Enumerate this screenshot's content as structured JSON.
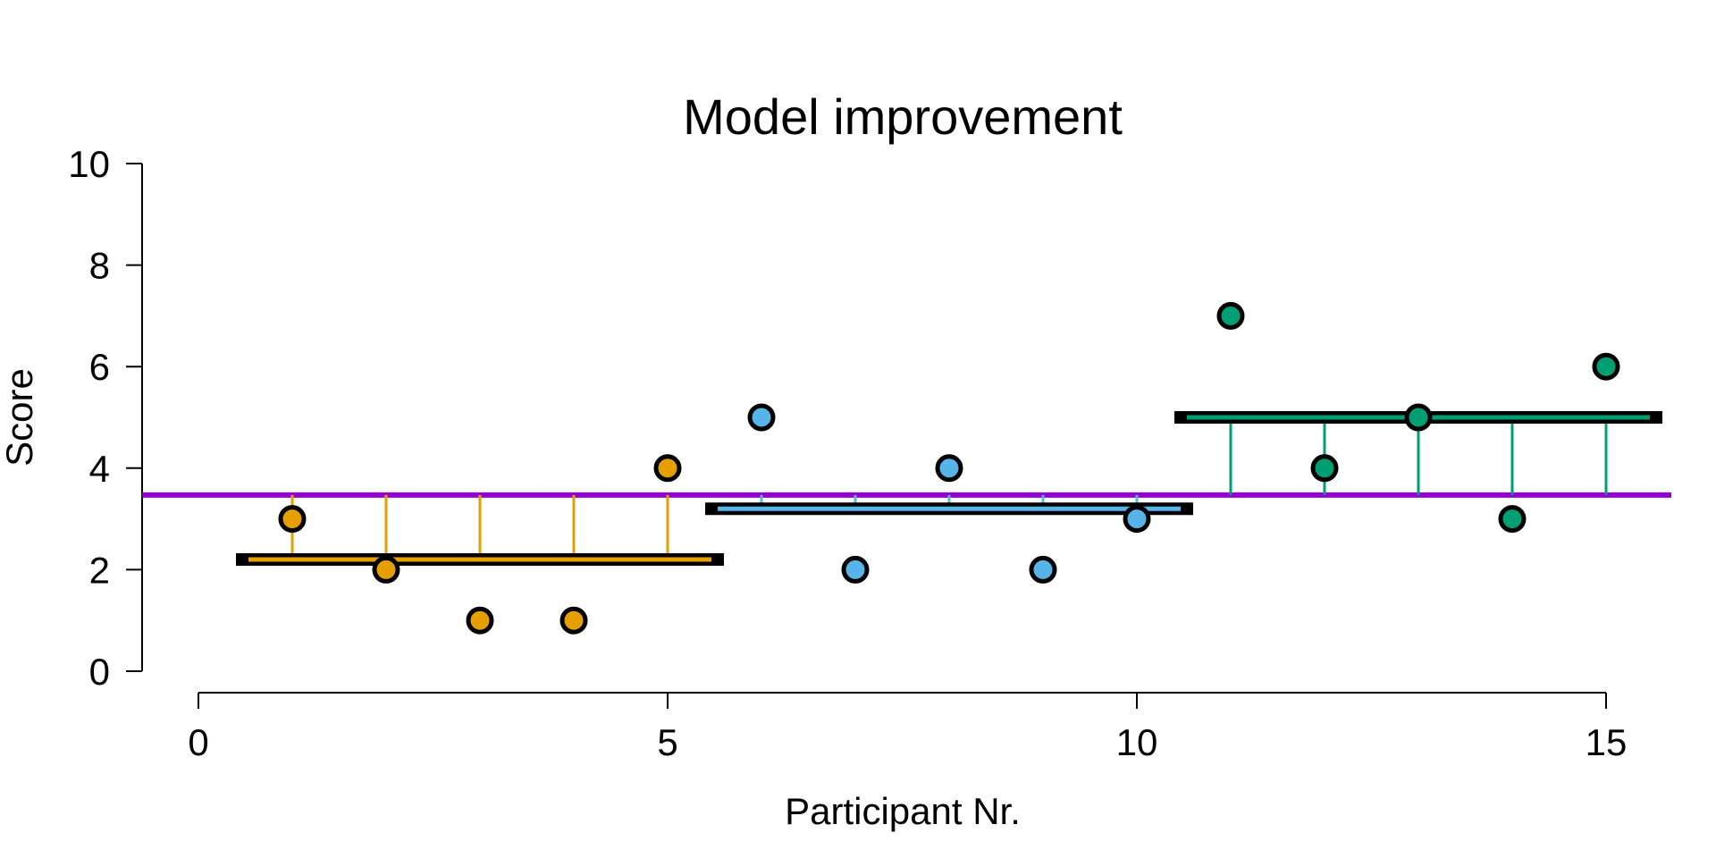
{
  "chart_data": {
    "type": "scatter",
    "title": "Model improvement",
    "xlabel": "Participant Nr.",
    "ylabel": "Score",
    "xlim": [
      0,
      15
    ],
    "ylim": [
      0,
      10
    ],
    "x_ticks": [
      0,
      5,
      10,
      15
    ],
    "y_ticks": [
      0,
      2,
      4,
      6,
      8,
      10
    ],
    "grand_mean": 3.47,
    "grand_mean_color": "#9400D3",
    "groups": [
      {
        "color": "#E69F00",
        "mean": 2.2,
        "x": [
          1,
          2,
          3,
          4,
          5
        ],
        "y": [
          3,
          2,
          1,
          1,
          4
        ]
      },
      {
        "color": "#56B4E9",
        "mean": 3.2,
        "x": [
          6,
          7,
          8,
          9,
          10
        ],
        "y": [
          5,
          2,
          4,
          2,
          3
        ]
      },
      {
        "color": "#009E73",
        "mean": 5.0,
        "x": [
          11,
          12,
          13,
          14,
          15
        ],
        "y": [
          7,
          4,
          5,
          3,
          6
        ]
      }
    ]
  }
}
